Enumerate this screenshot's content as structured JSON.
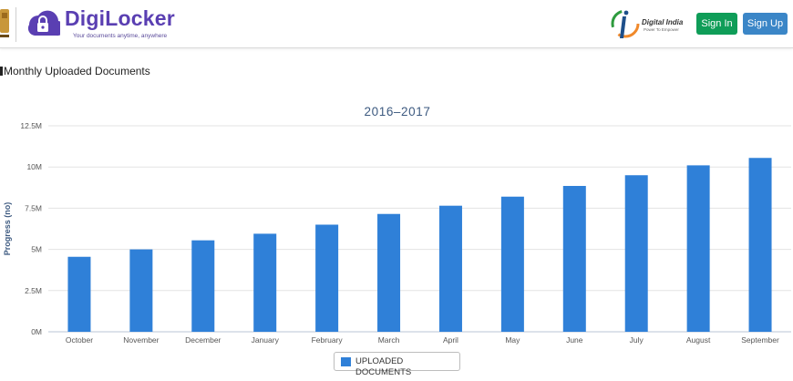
{
  "header": {
    "brand_name": "DigiLocker",
    "brand_tagline": "Your documents anytime, anywhere",
    "digital_india_title": "Digital India",
    "digital_india_sub": "Power To Empower",
    "signin_label": "Sign In",
    "signup_label": "Sign Up"
  },
  "section": {
    "title": "Monthly Uploaded Documents"
  },
  "legend": {
    "label": "UPLOADED DOCUMENTS"
  },
  "colors": {
    "bar": "#2f80d8",
    "brand": "#5a3fb2",
    "signin": "#0f9d58",
    "signup": "#3b86c7"
  },
  "chart_data": {
    "type": "bar",
    "title": "2016–2017",
    "ylabel": "Progress (no)",
    "xlabel": "",
    "categories": [
      "October",
      "November",
      "December",
      "January",
      "February",
      "March",
      "April",
      "May",
      "June",
      "July",
      "August",
      "September"
    ],
    "series": [
      {
        "name": "UPLOADED DOCUMENTS",
        "values": [
          4550000,
          5000000,
          5550000,
          5950000,
          6500000,
          7150000,
          7650000,
          8200000,
          8850000,
          9500000,
          10100000,
          10550000
        ]
      }
    ],
    "ylim": [
      0,
      12500000
    ],
    "yticks": [
      {
        "value": 0,
        "label": "0M"
      },
      {
        "value": 2500000,
        "label": "2.5M"
      },
      {
        "value": 5000000,
        "label": "5M"
      },
      {
        "value": 7500000,
        "label": "7.5M"
      },
      {
        "value": 10000000,
        "label": "10M"
      },
      {
        "value": 12500000,
        "label": "12.5M"
      }
    ],
    "grid": true,
    "legend_position": "bottom-center"
  }
}
